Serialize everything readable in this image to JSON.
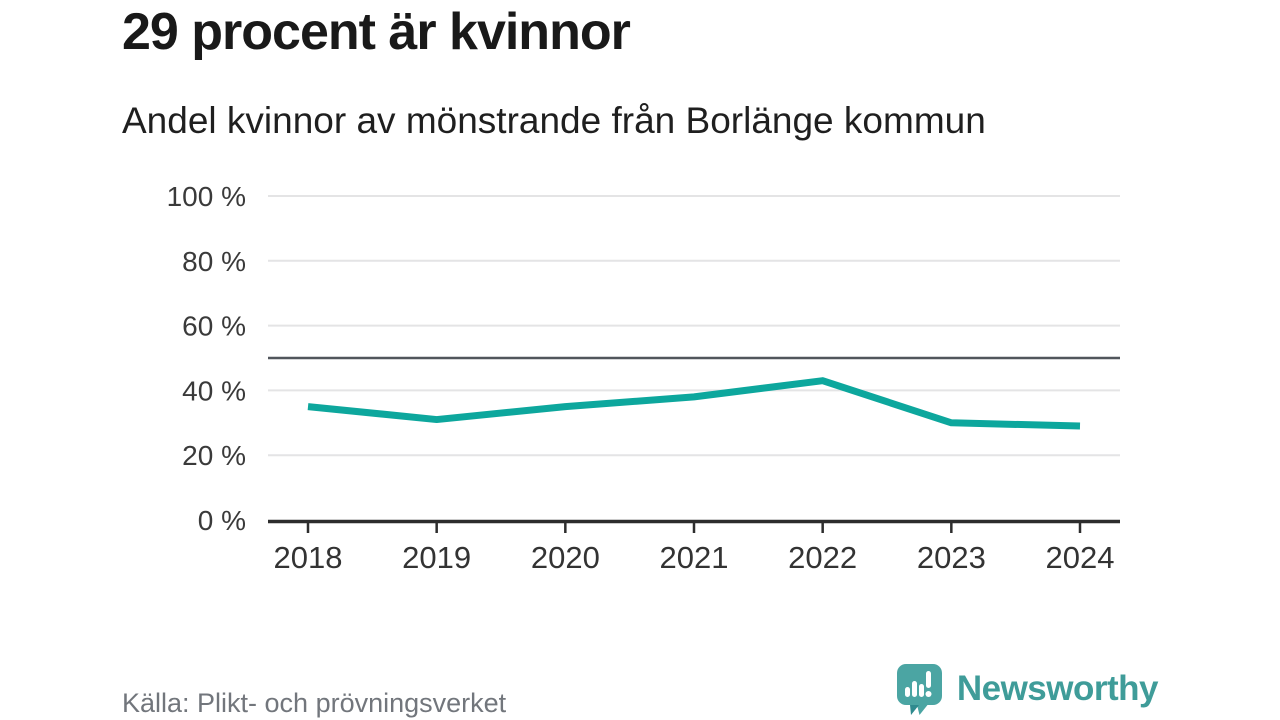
{
  "header": {
    "title": "29 procent är kvinnor",
    "subtitle": "Andel kvinnor av mönstrande från Borlänge kommun"
  },
  "chart_data": {
    "type": "line",
    "x": [
      "2018",
      "2019",
      "2020",
      "2021",
      "2022",
      "2023",
      "2024"
    ],
    "series": [
      {
        "name": "Andel kvinnor",
        "values": [
          35,
          31,
          35,
          38,
          43,
          30,
          29
        ]
      }
    ],
    "title": "29 procent är kvinnor",
    "subtitle": "Andel kvinnor av mönstrande från Borlänge kommun",
    "xlabel": "",
    "ylabel": "",
    "ylim": [
      0,
      100
    ],
    "yticks": [
      0,
      20,
      40,
      60,
      80,
      100
    ],
    "ytick_suffix": " %",
    "reference_line": 50,
    "grid": "horizontal",
    "legend": "none",
    "line_color": "#0da79d",
    "grid_color": "#e4e4e5",
    "reference_line_color": "#51565c",
    "axis_color": "#2d2d2d",
    "tick_label_color": "#3a3a3a"
  },
  "footer": {
    "source": "Källa: Plikt- och prövningsverket",
    "logo_text": "Newsworthy",
    "logo_color": "#4ba5a3"
  }
}
